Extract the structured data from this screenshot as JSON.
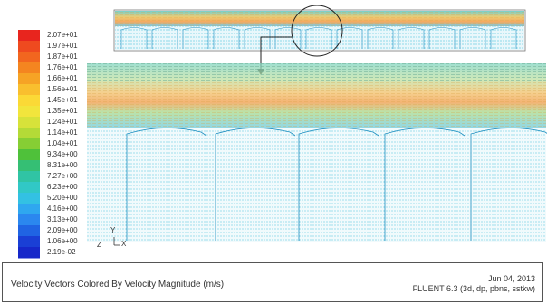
{
  "legend": {
    "labels": [
      "2.07e+01",
      "1.97e+01",
      "1.87e+01",
      "1.76e+01",
      "1.66e+01",
      "1.56e+01",
      "1.45e+01",
      "1.35e+01",
      "1.24e+01",
      "1.14e+01",
      "1.04e+01",
      "9.34e+00",
      "8.31e+00",
      "7.27e+00",
      "6.23e+00",
      "5.20e+00",
      "4.16e+00",
      "3.13e+00",
      "2.09e+00",
      "1.06e+00",
      "2.19e-02"
    ],
    "colors": [
      "#e8251e",
      "#ef4a1f",
      "#f2661f",
      "#f48520",
      "#f6a325",
      "#f9bf2e",
      "#fbd936",
      "#f2e53c",
      "#d7e23a",
      "#b4da37",
      "#86ce34",
      "#4fc13a",
      "#35bf74",
      "#30c4a4",
      "#31c8c6",
      "#33c1e3",
      "#2fa7ef",
      "#2b87ef",
      "#2064e3",
      "#1a3fd5",
      "#1627c9"
    ]
  },
  "axes": {
    "x_label": "X",
    "y_label": "Y",
    "z_label": "Z"
  },
  "footer": {
    "caption": "Velocity Vectors Colored By Velocity Magnitude (m/s)",
    "date": "Jun 04, 2013",
    "solver": "FLUENT 6.3 (3d, dp, pbns, sstkw)"
  }
}
